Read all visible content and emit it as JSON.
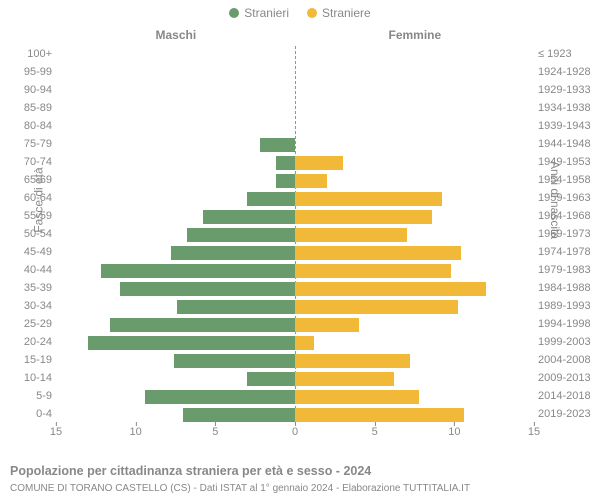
{
  "legend": {
    "series1": {
      "label": "Stranieri",
      "color": "#6a9b6c"
    },
    "series2": {
      "label": "Straniere",
      "color": "#f2b838"
    }
  },
  "column_headers": {
    "left": "Maschi",
    "right": "Femmine"
  },
  "y_title_left": "Fasce di età",
  "y_title_right": "Anni di nascita",
  "age_labels": [
    "100+",
    "95-99",
    "90-94",
    "85-89",
    "80-84",
    "75-79",
    "70-74",
    "65-69",
    "60-64",
    "55-59",
    "50-54",
    "45-49",
    "40-44",
    "35-39",
    "30-34",
    "25-29",
    "20-24",
    "15-19",
    "10-14",
    "5-9",
    "0-4"
  ],
  "birth_labels": [
    "≤ 1923",
    "1924-1928",
    "1929-1933",
    "1934-1938",
    "1939-1943",
    "1944-1948",
    "1949-1953",
    "1954-1958",
    "1959-1963",
    "1964-1968",
    "1969-1973",
    "1974-1978",
    "1979-1983",
    "1984-1988",
    "1989-1993",
    "1994-1998",
    "1999-2003",
    "2004-2008",
    "2009-2013",
    "2014-2018",
    "2019-2023"
  ],
  "chart": {
    "type": "population-pyramid",
    "left_values": [
      0,
      0,
      0,
      0,
      0,
      2.2,
      1.2,
      1.2,
      3.0,
      5.8,
      6.8,
      7.8,
      12.2,
      11.0,
      7.4,
      11.6,
      13.0,
      7.6,
      3.0,
      9.4,
      7.0
    ],
    "right_values": [
      0,
      0,
      0,
      0,
      0,
      0,
      3.0,
      2.0,
      9.2,
      8.6,
      7.0,
      10.4,
      9.8,
      12.0,
      10.2,
      4.0,
      1.2,
      7.2,
      6.2,
      7.8,
      10.6
    ],
    "x_max": 15,
    "x_ticks_left": [
      15,
      10,
      5,
      0
    ],
    "x_ticks_right": [
      5,
      10,
      15
    ],
    "left_color": "#6a9b6c",
    "right_color": "#f2b838",
    "bar_gap_ratio": 0.18,
    "background": "#ffffff",
    "axis_color": "#888888",
    "center_line_color": "#999966",
    "label_fontsize": 11,
    "title_fontsize": 12
  },
  "footer": {
    "title": "Popolazione per cittadinanza straniera per età e sesso - 2024",
    "subtitle": "COMUNE DI TORANO CASTELLO (CS) - Dati ISTAT al 1° gennaio 2024 - Elaborazione TUTTITALIA.IT"
  }
}
